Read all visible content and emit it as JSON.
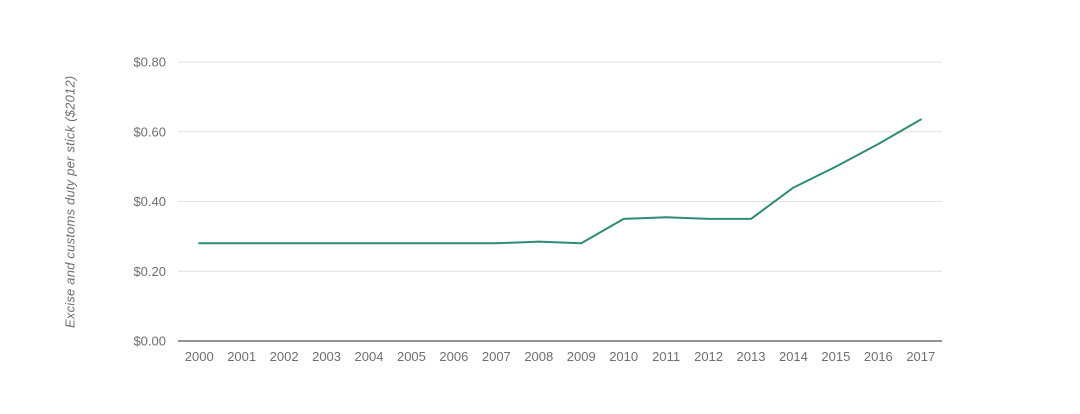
{
  "chart_data": {
    "type": "line",
    "x": [
      "2000",
      "2001",
      "2002",
      "2003",
      "2004",
      "2005",
      "2006",
      "2007",
      "2008",
      "2009",
      "2010",
      "2011",
      "2012",
      "2013",
      "2014",
      "2015",
      "2016",
      "2017"
    ],
    "series": [
      {
        "name": "Excise and customs duty per stick ($2012)",
        "color": "#2e8b76",
        "values": [
          0.28,
          0.28,
          0.28,
          0.28,
          0.28,
          0.28,
          0.28,
          0.28,
          0.285,
          0.28,
          0.35,
          0.355,
          0.35,
          0.35,
          0.44,
          0.5,
          0.565,
          0.635
        ]
      }
    ],
    "ylabel": "Excise and customs duty per stick ($2012)",
    "ylim": [
      0,
      0.8
    ],
    "ytick_values": [
      0,
      0.2,
      0.4,
      0.6,
      0.8
    ],
    "ytick_labels": [
      "$0.00",
      "$0.20",
      "$0.40",
      "$0.60",
      "$0.80"
    ],
    "grid": "horizontal",
    "legend_position": "none",
    "colors": {
      "line": "#2e8b76",
      "gridline": "#e0e0e0",
      "axis_line": "#6e6e6e",
      "tick_text": "#6f6f6f"
    }
  }
}
